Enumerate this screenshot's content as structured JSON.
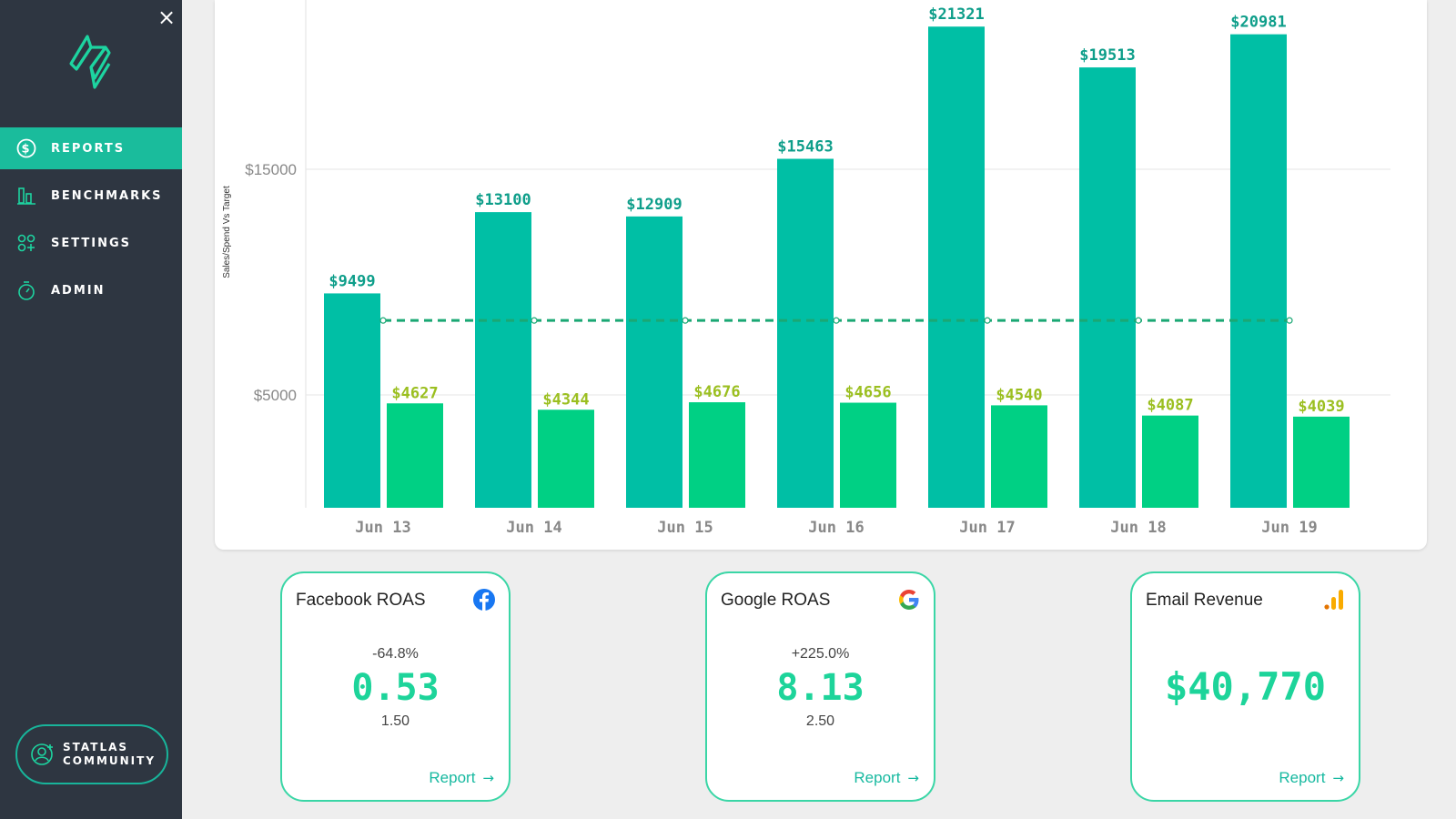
{
  "sidebar": {
    "items": [
      {
        "label": "REPORTS",
        "icon": "dollar-circle-icon",
        "active": true
      },
      {
        "label": "BENCHMARKS",
        "icon": "bar-chart-icon",
        "active": false
      },
      {
        "label": "SETTINGS",
        "icon": "settings-grid-icon",
        "active": false
      },
      {
        "label": "ADMIN",
        "icon": "stopwatch-icon",
        "active": false
      }
    ],
    "community": {
      "line1": "STATLAS",
      "line2": "COMMUNITY",
      "icon": "user-plus-icon"
    },
    "close_icon": "×"
  },
  "colors": {
    "sidebar": "#2e3641",
    "active": "#1abc9c",
    "sales": "#00bfa5",
    "spend": "#00d084",
    "target": "#1aa874"
  },
  "chart_data": {
    "type": "bar",
    "ylabel": "Sales/Spend Vs Target",
    "categories": [
      "Jun 13",
      "Jun 14",
      "Jun 15",
      "Jun 16",
      "Jun 17",
      "Jun 18",
      "Jun 19"
    ],
    "series": [
      {
        "values": [
          9499,
          13100,
          12909,
          15463,
          21321,
          19513,
          20981
        ],
        "labels": [
          "$9499",
          "$13100",
          "$12909",
          "$15463",
          "$21321",
          "$19513",
          "$20981"
        ]
      },
      {
        "values": [
          4627,
          4344,
          4676,
          4656,
          4540,
          4087,
          4039
        ],
        "labels": [
          "$4627",
          "$4344",
          "$4676",
          "$4656",
          "$4540",
          "$4087",
          "$4039"
        ]
      }
    ],
    "target_line": 8300,
    "yticks": [
      {
        "value": 5000,
        "label": "$5000"
      },
      {
        "value": 15000,
        "label": "$15000"
      }
    ],
    "ylim": [
      0,
      22500
    ],
    "grid": true
  },
  "cards": [
    {
      "title": "Facebook ROAS",
      "icon": "facebook-icon",
      "change": "-64.8%",
      "value": "0.53",
      "target": "1.50",
      "report": "Report",
      "arrow": "→"
    },
    {
      "title": "Google ROAS",
      "icon": "google-icon",
      "change": "+225.0%",
      "value": "8.13",
      "target": "2.50",
      "report": "Report",
      "arrow": "→"
    },
    {
      "title": "Email Revenue",
      "icon": "analytics-bars-icon",
      "change": "",
      "value": "$40,770",
      "target": "",
      "report": "Report",
      "arrow": "→"
    }
  ]
}
